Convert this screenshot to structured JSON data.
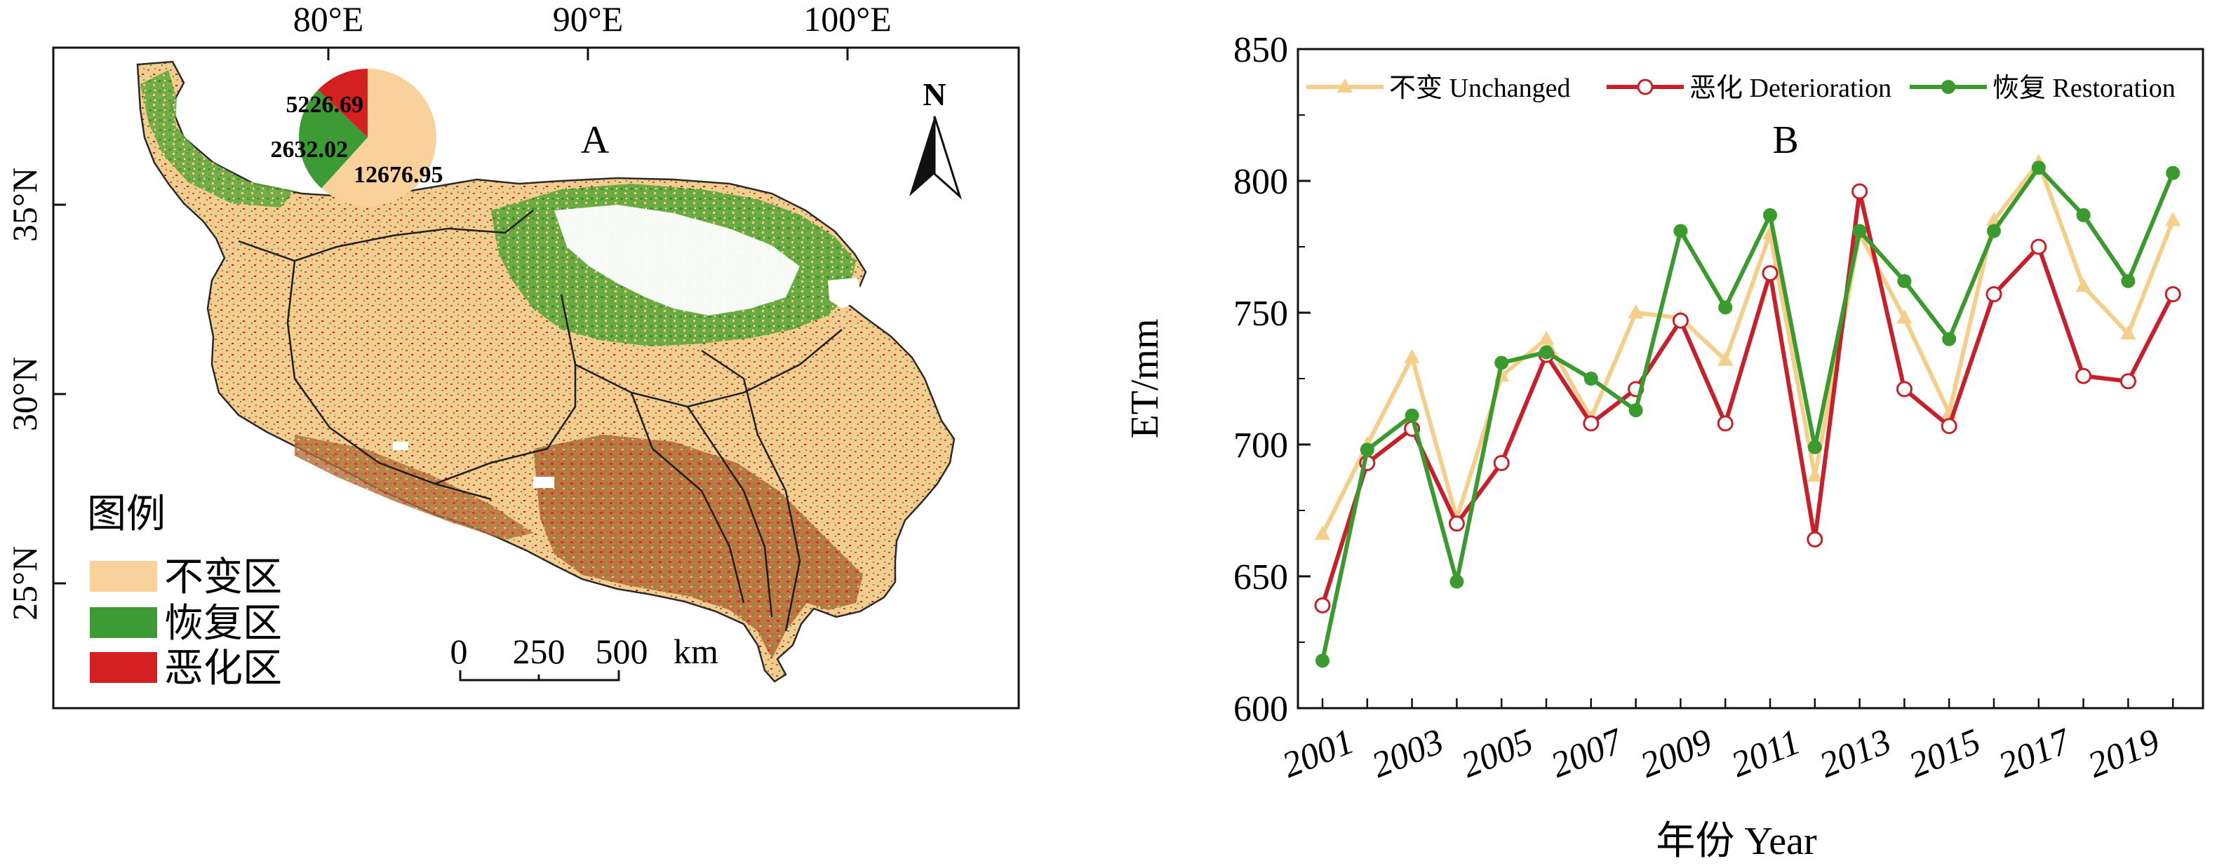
{
  "panel_a": {
    "letter": "A",
    "lon_labels": [
      "80°E",
      "90°E",
      "100°E"
    ],
    "lat_labels": [
      "35°N",
      "30°N",
      "25°N"
    ],
    "north_label": "N",
    "legend": {
      "title": "图例",
      "items": [
        {
          "label": "不变区",
          "color": "#f8d29a"
        },
        {
          "label": "恢复区",
          "color": "#3d9b35"
        },
        {
          "label": "恶化区",
          "color": "#d42020"
        }
      ]
    },
    "scale_bar": {
      "ticks": [
        "0",
        "250",
        "500"
      ],
      "unit": "km"
    },
    "map_colors": {
      "unchanged": "#f8d29a",
      "restoration": "#3d9b35",
      "deterioration": "#d42020",
      "degraded_mix": "#b07a3a",
      "water": "#ffffff"
    }
  },
  "chart_data": [
    {
      "type": "pie",
      "labels": [
        "不变区",
        "恢复区",
        "恶化区"
      ],
      "values": [
        12676.95,
        5226.69,
        2632.02
      ],
      "value_labels": [
        "12676.95",
        "5226.69",
        "2632.02"
      ],
      "colors": [
        "#f8d29a",
        "#3d9b35",
        "#d42020"
      ]
    },
    {
      "type": "line",
      "panel_letter": "B",
      "x": [
        2001,
        2002,
        2003,
        2004,
        2005,
        2006,
        2007,
        2008,
        2009,
        2010,
        2011,
        2012,
        2013,
        2014,
        2015,
        2016,
        2017,
        2018,
        2019,
        2020
      ],
      "x_tick_labels": [
        "2001",
        "2003",
        "2005",
        "2007",
        "2009",
        "2011",
        "2013",
        "2015",
        "2017",
        "2019"
      ],
      "y_tick_labels": [
        "600",
        "650",
        "700",
        "750",
        "800",
        "850"
      ],
      "ylim": [
        600,
        850
      ],
      "xlabel": "年份 Year",
      "ylabel": "ET/mm",
      "legend_position": "top",
      "series": [
        {
          "name": "不变 Unchanged",
          "color": "#f5cf8a",
          "marker": "triangle",
          "values": [
            666,
            700,
            733,
            672,
            726,
            740,
            710,
            750,
            748,
            732,
            780,
            688,
            780,
            748,
            712,
            785,
            807,
            760,
            742,
            785
          ]
        },
        {
          "name": "恶化 Deterioration",
          "color": "#c8202a",
          "marker": "open-circle",
          "values": [
            639,
            693,
            706,
            670,
            693,
            734,
            708,
            721,
            747,
            708,
            765,
            664,
            796,
            721,
            707,
            757,
            775,
            726,
            724,
            757
          ]
        },
        {
          "name": "恢复 Restoration",
          "color": "#3a9a2e",
          "marker": "circle",
          "values": [
            618,
            698,
            711,
            648,
            731,
            735,
            725,
            713,
            781,
            752,
            787,
            699,
            781,
            762,
            740,
            781,
            805,
            787,
            762,
            803
          ]
        }
      ]
    }
  ]
}
